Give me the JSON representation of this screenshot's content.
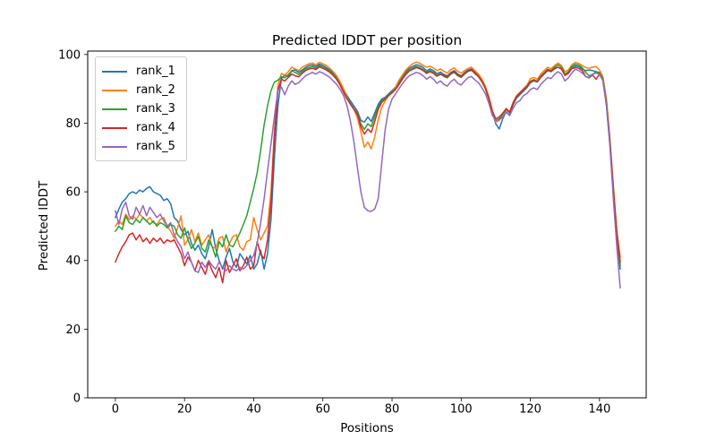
{
  "chart_data": {
    "type": "line",
    "title": "Predicted lDDT per position",
    "xlabel": "Positions",
    "ylabel": "Predicted lDDT",
    "xlim": [
      -8,
      153.5
    ],
    "ylim": [
      0,
      101
    ],
    "xticks": [
      0,
      20,
      40,
      60,
      80,
      100,
      120,
      140
    ],
    "yticks": [
      0,
      20,
      40,
      60,
      80,
      100
    ],
    "grid": false,
    "legend_position": "upper left",
    "x_start": 0,
    "x_step": 1,
    "n_points": 147,
    "series": [
      {
        "name": "rank_1",
        "color": "#1f77b4",
        "values": [
          52.5,
          55,
          57,
          58,
          59.5,
          60,
          59.5,
          60.5,
          60,
          61,
          61.5,
          60,
          59.5,
          59,
          57.5,
          58,
          56.5,
          52.5,
          51.5,
          49,
          47.5,
          48.5,
          45,
          43,
          44.5,
          42,
          40.5,
          44,
          49,
          43.5,
          40,
          37.5,
          41,
          43.5,
          39.5,
          38,
          42,
          40.5,
          39,
          41.5,
          37.5,
          39,
          43,
          37.5,
          42,
          52,
          70,
          85,
          93,
          94,
          93.5,
          95.3,
          95.5,
          94.8,
          95.5,
          96.2,
          96.8,
          97,
          96.5,
          97.2,
          96.8,
          96.2,
          95.5,
          94.6,
          93.4,
          91.8,
          89.8,
          88,
          86.5,
          85,
          83.5,
          80.8,
          80.3,
          81.8,
          80.5,
          83,
          85.5,
          87,
          87.5,
          88.5,
          89.5,
          90.5,
          92,
          93.5,
          95,
          96,
          96.5,
          97,
          96.8,
          96.2,
          95.2,
          95.8,
          95.3,
          94.4,
          94.9,
          94.2,
          93.8,
          94.8,
          95.3,
          94.3,
          93.8,
          94.8,
          95.5,
          95.8,
          94.8,
          93.8,
          92.3,
          90.3,
          87.3,
          83.3,
          79.8,
          78.3,
          81.3,
          83.3,
          82.3,
          85.3,
          87.3,
          88.3,
          89.3,
          90.3,
          91.8,
          92.3,
          92,
          93.3,
          94.3,
          95.3,
          95,
          95.8,
          96.3,
          95.8,
          94,
          94.5,
          96,
          96.7,
          96.5,
          95.8,
          95.3,
          95.5,
          95.3,
          95,
          94.5,
          92.5,
          85.5,
          74,
          60,
          47,
          37.5
        ]
      },
      {
        "name": "rank_2",
        "color": "#ff7f0e",
        "values": [
          50,
          51.5,
          50.5,
          53.5,
          52,
          53,
          52,
          53.5,
          52.5,
          51.5,
          52.5,
          51,
          50.5,
          52,
          52.5,
          50,
          48.5,
          46.5,
          49.5,
          53,
          44.5,
          46,
          49,
          45.5,
          48,
          44.5,
          46,
          47.5,
          44,
          43.5,
          46.5,
          47,
          42.5,
          45,
          47,
          47.5,
          44,
          43,
          45.5,
          46,
          52.5,
          49,
          46,
          48,
          50,
          60,
          78,
          91,
          94.5,
          94,
          95,
          96.3,
          95.8,
          95.3,
          96.3,
          96.8,
          97.3,
          97.5,
          97,
          97.7,
          97.3,
          96.8,
          96,
          95,
          93.8,
          92,
          90,
          87.5,
          85.5,
          84,
          81.5,
          77.5,
          73,
          74.5,
          72.5,
          76,
          81,
          84.5,
          86.5,
          88,
          89,
          90.5,
          92.5,
          94,
          95.5,
          96.5,
          97.3,
          97.8,
          97.5,
          96.8,
          96.3,
          96.6,
          96.1,
          95.3,
          95.8,
          95.1,
          94.6,
          95.6,
          96.1,
          95.1,
          94.6,
          95.3,
          96,
          96.3,
          95.3,
          94.3,
          92.8,
          90.8,
          87.8,
          83.8,
          80.3,
          80.8,
          82.8,
          84.3,
          83.3,
          86,
          88,
          89,
          90,
          91,
          93,
          93.3,
          92.8,
          94.3,
          95.3,
          96.3,
          95.8,
          96.8,
          97.5,
          96.8,
          95,
          95.5,
          97,
          97.7,
          97.4,
          96.8,
          96.2,
          96,
          96.3,
          96.5,
          95.5,
          93.5,
          87,
          76,
          62,
          49,
          41
        ]
      },
      {
        "name": "rank_3",
        "color": "#2ca02c",
        "values": [
          48.5,
          50,
          49,
          53,
          51,
          50.5,
          52,
          51,
          52.5,
          51.5,
          50.5,
          51.5,
          50,
          51,
          50.5,
          49.5,
          50.5,
          50,
          47.5,
          46.5,
          49.5,
          46,
          43.5,
          45,
          47,
          43.5,
          42.5,
          46,
          44,
          41,
          45.5,
          44,
          47.5,
          44.5,
          44,
          46,
          48,
          50.5,
          53,
          57,
          61,
          65.5,
          72,
          79.5,
          85,
          89.5,
          92,
          92.5,
          93.5,
          93.2,
          94.2,
          95.2,
          94.8,
          94.2,
          95,
          95.8,
          96.2,
          96.5,
          96,
          96.8,
          96.3,
          95.8,
          95.2,
          94.2,
          93,
          91.2,
          89.2,
          87.2,
          85.8,
          84.2,
          82.8,
          79.8,
          78.2,
          79.8,
          79,
          82,
          84.8,
          86.5,
          87.2,
          88.2,
          89,
          90,
          91.5,
          93,
          94.5,
          95.5,
          96,
          96.5,
          96.2,
          95.6,
          94.8,
          95.3,
          94.8,
          93.9,
          94.4,
          93.6,
          93.2,
          94.3,
          94.8,
          93.8,
          93.3,
          94.3,
          95.1,
          95.4,
          94.4,
          93.5,
          92,
          90,
          87,
          83,
          80.8,
          81.3,
          82.5,
          84,
          83,
          85.6,
          87.6,
          88.6,
          89.6,
          90.6,
          92.2,
          92.7,
          92.2,
          93.7,
          94.7,
          95.7,
          95.3,
          96.3,
          97,
          96.3,
          94.3,
          95,
          96.5,
          97.2,
          96.9,
          96.2,
          94.8,
          93.8,
          94.2,
          95,
          94.8,
          92.8,
          86,
          75,
          61,
          48,
          38.5
        ]
      },
      {
        "name": "rank_4",
        "color": "#d62728",
        "values": [
          39.5,
          42,
          44,
          45.5,
          47.5,
          48,
          46,
          47.5,
          45.5,
          46.5,
          45,
          46.5,
          45.5,
          46.5,
          45,
          46,
          45.5,
          46,
          44,
          42,
          38.5,
          41,
          39.5,
          37,
          40,
          38,
          36,
          39.5,
          37,
          35,
          38,
          33.5,
          40,
          36.5,
          38.5,
          40.5,
          37,
          38.5,
          41,
          37.5,
          38.5,
          45.5,
          42,
          40.5,
          46,
          57,
          76,
          89.5,
          92.8,
          92.3,
          93.3,
          94.3,
          93.8,
          93.5,
          94.5,
          95.3,
          95.8,
          96,
          95.6,
          96.4,
          96,
          95.5,
          94.8,
          93.9,
          92.7,
          91,
          89,
          87,
          85.5,
          84,
          82.5,
          79,
          76.8,
          78.3,
          77.3,
          80.5,
          84,
          86,
          87,
          88,
          88.8,
          89.8,
          91.2,
          92.8,
          94.2,
          95.2,
          95.7,
          96.2,
          95.9,
          95.3,
          94.5,
          95,
          94.5,
          93.7,
          94.2,
          93.9,
          93.5,
          94.5,
          95,
          94,
          93.5,
          94.5,
          95.2,
          95.5,
          94.6,
          93.7,
          92.2,
          90.2,
          87.2,
          83.5,
          81.3,
          81.8,
          82.9,
          84.2,
          83.2,
          85.8,
          87.8,
          88.8,
          89.8,
          90.8,
          92,
          92.5,
          92.1,
          93.5,
          94.5,
          95.5,
          95.1,
          96,
          96.3,
          95.8,
          93.9,
          94.6,
          95.9,
          96.2,
          96,
          95.3,
          93.6,
          93.2,
          94,
          92.8,
          94.3,
          92.3,
          85.3,
          74.5,
          60.5,
          47.5,
          39.5
        ]
      },
      {
        "name": "rank_5",
        "color": "#9467bd",
        "values": [
          54.5,
          50.5,
          55,
          57,
          53,
          52,
          55.5,
          53.5,
          56,
          53,
          55.5,
          54,
          52.5,
          53.5,
          51.5,
          50,
          51,
          47.5,
          45.5,
          44,
          40.5,
          42.5,
          39.5,
          37,
          36.5,
          39.5,
          38,
          40,
          38.5,
          37.5,
          39.5,
          38,
          37,
          38.5,
          37.5,
          37,
          38,
          37.5,
          38.5,
          40,
          41.5,
          45,
          51,
          58,
          66,
          74,
          82,
          89.5,
          90.5,
          88.3,
          90.8,
          92.3,
          91.3,
          91.8,
          92.8,
          93.8,
          94.3,
          94.8,
          94.3,
          95,
          94.6,
          94,
          93.3,
          92.3,
          91.3,
          89.8,
          88,
          85,
          80.5,
          74.5,
          67,
          60,
          55.5,
          54.5,
          54.3,
          55,
          58,
          68,
          78,
          84,
          87,
          88.5,
          90,
          91.5,
          92.8,
          93.8,
          94.3,
          94.8,
          94.5,
          93.8,
          92.8,
          93.6,
          92.8,
          91.6,
          92.3,
          91.3,
          90.8,
          92.1,
          92.8,
          91.6,
          91.1,
          92.3,
          93.3,
          93.6,
          92.6,
          91.8,
          90.3,
          88.6,
          85.8,
          82.3,
          80.8,
          81,
          81.8,
          83.2,
          82.2,
          84.3,
          86,
          86.6,
          88,
          88.6,
          89.8,
          90.3,
          89.8,
          91.3,
          92.3,
          93.3,
          93,
          94.2,
          95,
          94.3,
          92.3,
          93.2,
          94.6,
          95.7,
          95.3,
          94.6,
          93.6,
          93.3,
          94.3,
          94.6,
          94.3,
          92.3,
          85,
          73.5,
          58,
          44,
          32
        ]
      }
    ]
  }
}
